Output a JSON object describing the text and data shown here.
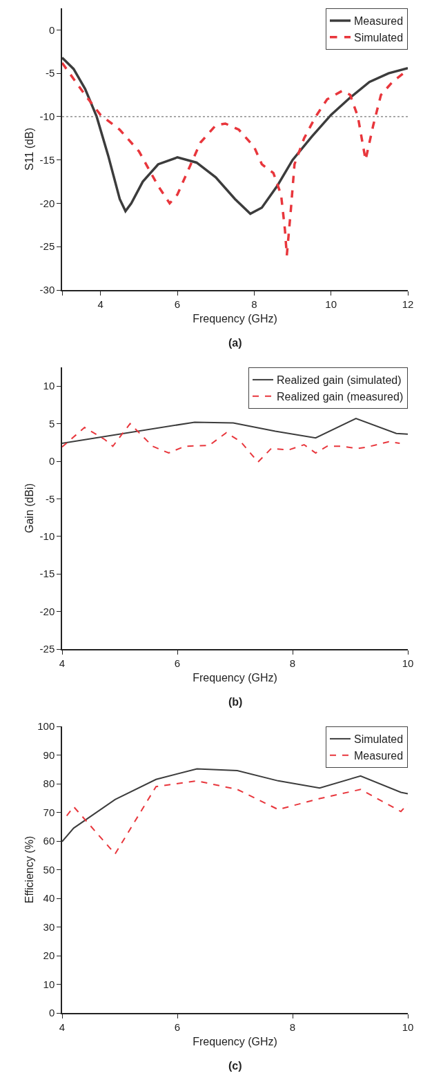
{
  "chart_data": [
    {
      "type": "line",
      "xlabel": "Frequency (GHz)",
      "ylabel": "S11 (dB)",
      "annotations": [
        "(a)"
      ],
      "xlim": [
        3,
        12
      ],
      "xticks": [
        {
          "value": 3,
          "label": null
        },
        4,
        6,
        8,
        10,
        12
      ],
      "ylim": [
        -30,
        2.5
      ],
      "yticks": [
        -30,
        -25,
        -20,
        -15,
        -10,
        -5,
        0
      ],
      "grid": false,
      "legend": "top right",
      "ref_lines": [
        {
          "axis": "y",
          "value": -10,
          "label": null,
          "color": "#555555",
          "line_style": "dotted"
        }
      ],
      "series": [
        {
          "name": "Measured",
          "color": "#3c3c3c",
          "line_style": "solid",
          "x": [
            3,
            3.3,
            3.6,
            3.9,
            4.2,
            4.5,
            4.65,
            4.8,
            5.1,
            5.5,
            6,
            6.5,
            7,
            7.5,
            7.9,
            8.2,
            8.6,
            9,
            9.5,
            10,
            10.5,
            11,
            11.5,
            12
          ],
          "values": [
            -3.2,
            -4.5,
            -6.8,
            -10,
            -14.5,
            -19.5,
            -20.9,
            -20,
            -17.5,
            -15.5,
            -14.7,
            -15.3,
            -17,
            -19.5,
            -21.2,
            -20.5,
            -18,
            -15,
            -12.3,
            -9.8,
            -7.8,
            -6,
            -5,
            -4.4
          ]
        },
        {
          "name": "Simulated",
          "color": "#e8363c",
          "line_style": "dashed",
          "x": [
            3,
            3.6,
            4,
            4.5,
            5,
            5.5,
            5.8,
            6,
            6.3,
            6.6,
            7,
            7.25,
            7.6,
            8,
            8.2,
            8.5,
            8.7,
            8.8,
            8.85,
            8.95,
            9.05,
            9.3,
            9.6,
            9.9,
            10.3,
            10.5,
            10.7,
            10.9,
            11.1,
            11.3,
            11.6,
            12
          ],
          "values": [
            -3.8,
            -7.5,
            -9.8,
            -11.5,
            -14,
            -18,
            -20,
            -19,
            -16,
            -13,
            -11,
            -10.8,
            -11.5,
            -13.5,
            -15.5,
            -16.5,
            -19,
            -23,
            -26,
            -21,
            -15.5,
            -12.5,
            -10,
            -8,
            -7,
            -7.5,
            -10,
            -15,
            -11,
            -7.5,
            -6,
            -4.6
          ]
        }
      ]
    },
    {
      "type": "line",
      "xlabel": "Frequency (GHz)",
      "ylabel": "Gain (dBi)",
      "annotations": [
        "(b)"
      ],
      "xlim": [
        4,
        10
      ],
      "xticks": [
        4,
        6,
        8,
        10
      ],
      "ylim": [
        -25,
        12.5
      ],
      "yticks": [
        -25,
        -20,
        -15,
        -10,
        -5,
        0,
        5,
        10
      ],
      "grid": false,
      "legend": "top right",
      "series": [
        {
          "name": "Realized gain (simulated)",
          "color": "#3c3c3c",
          "line_style": "solid",
          "x": [
            4,
            6.3,
            6.97,
            7.7,
            8.4,
            9.1,
            9.8,
            10
          ],
          "values": [
            2.4,
            5.2,
            5.1,
            4,
            3.1,
            5.7,
            3.7,
            3.6
          ]
        },
        {
          "name": "Realized gain (measured)",
          "color": "#e8363c",
          "line_style": "dashed",
          "x": [
            4,
            4.39,
            4.74,
            4.88,
            5.18,
            5.57,
            5.85,
            6.13,
            6.55,
            6.85,
            7.1,
            7.4,
            7.63,
            7.93,
            8.2,
            8.4,
            8.6,
            8.84,
            9.12,
            9.3,
            9.67,
            9.86
          ],
          "values": [
            1.9,
            4.5,
            2.9,
            2,
            5,
            2,
            1.1,
            2,
            2.1,
            3.8,
            2.6,
            -0.1,
            1.7,
            1.5,
            2.2,
            1.1,
            2,
            2,
            1.7,
            1.9,
            2.6,
            2.4
          ]
        }
      ]
    },
    {
      "type": "line",
      "xlabel": "Frequency (GHz)",
      "ylabel": "Efficiency (%)",
      "annotations": [
        "(c)"
      ],
      "xlim": [
        4,
        10
      ],
      "xticks": [
        4,
        6,
        8,
        10
      ],
      "ylim": [
        0,
        100
      ],
      "yticks": [
        0,
        10,
        20,
        30,
        40,
        50,
        60,
        70,
        80,
        90,
        100
      ],
      "grid": false,
      "legend": "top right",
      "series": [
        {
          "name": "Simulated",
          "color": "#3c3c3c",
          "line_style": "solid",
          "x": [
            4,
            4.2,
            4.92,
            5.63,
            6.34,
            7.04,
            7.75,
            8.47,
            9.18,
            9.88,
            10
          ],
          "values": [
            59.8,
            64.5,
            74.5,
            81.5,
            85.2,
            84.6,
            81,
            78.5,
            82.7,
            77,
            76.5
          ]
        },
        {
          "name": "Measured",
          "color": "#e8363c",
          "line_style": "dashed",
          "x": [
            4.08,
            4.2,
            4.92,
            5.63,
            6.34,
            7.04,
            7.75,
            8.47,
            9.18,
            9.88,
            10
          ],
          "values": [
            68.8,
            72,
            55.5,
            79,
            81,
            78,
            71,
            74.8,
            78,
            70.3,
            73
          ]
        }
      ]
    }
  ]
}
